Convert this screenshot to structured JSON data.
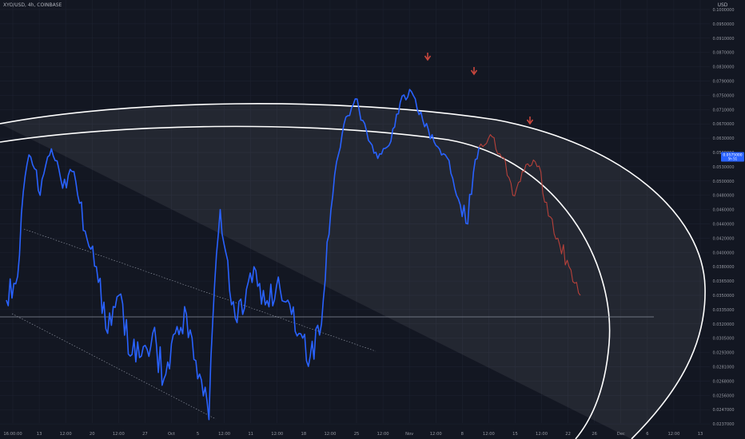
{
  "header": {
    "symbol": "XYO/USD",
    "interval": "4h",
    "exchange": "COINBASE",
    "separator": ", "
  },
  "colors": {
    "background": "#131722",
    "grid": "#1f2432",
    "price_line": "#2962ff",
    "projection_line": "#b8413a",
    "arcs": "#ffffff",
    "marker_arrows": "#c8463d",
    "price_tag": "#2962ff"
  },
  "chart_data": {
    "type": "line",
    "title": "XYO/USD, 4h, COINBASE",
    "ylabel": "USD",
    "ylim": [
      0.0227,
      0.1001
    ],
    "y_ticks": [
      "0.1000000",
      "0.0950000",
      "0.0910000",
      "0.0870000",
      "0.0830000",
      "0.0790000",
      "0.0750000",
      "0.0710000",
      "0.0670000",
      "0.0630000",
      "0.0590000",
      "0.0530000",
      "0.0500000",
      "0.0480000",
      "0.0460000",
      "0.0440000",
      "0.0420000",
      "0.0400000",
      "0.0380000",
      "0.0365000",
      "0.0350000",
      "0.0335000",
      "0.0320000",
      "0.0305000",
      "0.0293000",
      "0.0281000",
      "0.0268000",
      "0.0256000",
      "0.0247000",
      "0.0237000"
    ],
    "y_tick_values": [
      0.1,
      0.095,
      0.091,
      0.087,
      0.083,
      0.079,
      0.075,
      0.071,
      0.067,
      0.063,
      0.059,
      0.053,
      0.05,
      0.048,
      0.046,
      0.044,
      0.042,
      0.04,
      0.038,
      0.0365,
      0.035,
      0.0335,
      0.032,
      0.0305,
      0.0293,
      0.0281,
      0.0268,
      0.0256,
      0.0247,
      0.0237
    ],
    "x_ticks": [
      "16:00:00",
      "13",
      "12:00",
      "20",
      "12:00",
      "27",
      "Oct",
      "5",
      "12:00",
      "11",
      "12:00",
      "18",
      "12:00",
      "25",
      "12:00",
      "Nov",
      "12:00",
      "8",
      "12:00",
      "15",
      "12:00",
      "22",
      "26",
      "Dec",
      "6",
      "12:00",
      "13"
    ],
    "current_price_label": "0.0575000",
    "current_price_sublabel": "5h 51",
    "series": [
      {
        "points": [
          [
            0,
            0.0345
          ],
          [
            1,
            0.037
          ],
          [
            2,
            0.058
          ],
          [
            3,
            0.048
          ],
          [
            4,
            0.06
          ],
          [
            5,
            0.049
          ],
          [
            6,
            0.052
          ],
          [
            7,
            0.043
          ],
          [
            8,
            0.038
          ],
          [
            9,
            0.031
          ],
          [
            10,
            0.035
          ],
          [
            11,
            0.029
          ],
          [
            12,
            0.029
          ],
          [
            13,
            0.031
          ],
          [
            14,
            0.027
          ],
          [
            15,
            0.031
          ],
          [
            16,
            0.033
          ],
          [
            17,
            0.027
          ],
          [
            18,
            0.024
          ],
          [
            19,
            0.046
          ],
          [
            20,
            0.034
          ],
          [
            21,
            0.033
          ],
          [
            22,
            0.038
          ],
          [
            23,
            0.034
          ],
          [
            24,
            0.036
          ],
          [
            25,
            0.0345
          ],
          [
            26,
            0.031
          ],
          [
            27,
            0.029
          ],
          [
            28,
            0.032
          ],
          [
            29,
            0.048
          ],
          [
            30,
            0.067
          ],
          [
            31,
            0.074
          ],
          [
            32,
            0.065
          ],
          [
            33,
            0.0565
          ],
          [
            34,
            0.061
          ],
          [
            35,
            0.073
          ],
          [
            36,
            0.076
          ],
          [
            37,
            0.068
          ],
          [
            38,
            0.062
          ],
          [
            39,
            0.058
          ],
          [
            40,
            0.048
          ],
          [
            41,
            0.044
          ],
          [
            42,
            0.0605
          ]
        ]
      },
      {
        "points": [
          [
            42,
            0.0605
          ],
          [
            43,
            0.064
          ],
          [
            44,
            0.057
          ],
          [
            45,
            0.048
          ],
          [
            46,
            0.052
          ],
          [
            47,
            0.055
          ],
          [
            48,
            0.047
          ],
          [
            49,
            0.042
          ],
          [
            50,
            0.038
          ],
          [
            51,
            0.035
          ]
        ]
      }
    ],
    "annotations": [
      "down-arrow",
      "down-arrow",
      "down-arrow"
    ]
  }
}
